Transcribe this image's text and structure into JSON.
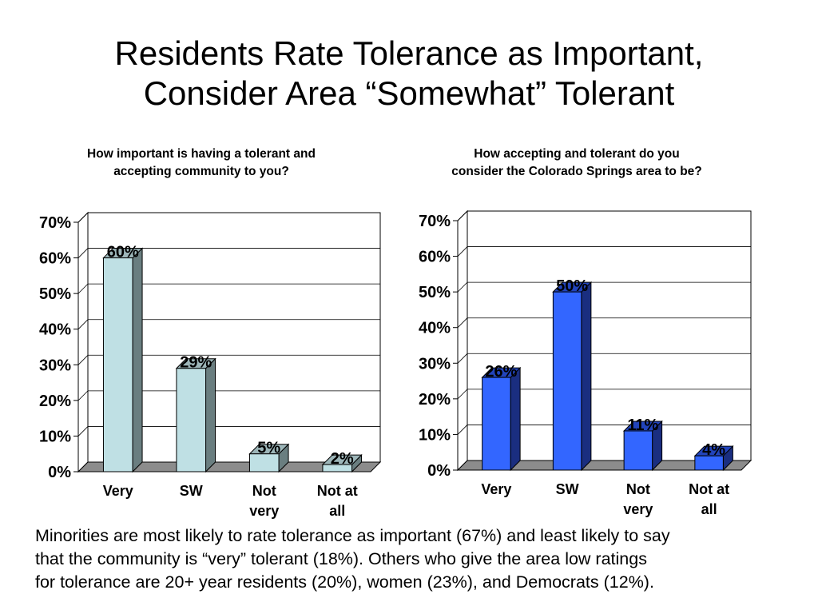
{
  "title": {
    "line1": "Residents Rate Tolerance as Important,",
    "line2": "Consider Area “Somewhat” Tolerant"
  },
  "footnote": {
    "line1": "Minorities are most likely to rate tolerance as important (67%) and least likely to say",
    "line2": "that the community is “very” tolerant (18%).  Others who give the area low ratings",
    "line3": "for tolerance are 20+ year residents (20%), women (23%), and Democrats (12%)."
  },
  "chart_data": [
    {
      "type": "bar",
      "title_lines": [
        "How important is having a tolerant and",
        "accepting community to you?"
      ],
      "categories": [
        [
          "Very"
        ],
        [
          "SW"
        ],
        [
          "Not",
          "very"
        ],
        [
          "Not at",
          "all"
        ]
      ],
      "values": [
        60,
        29,
        5,
        2
      ],
      "data_labels": [
        "60%",
        "29%",
        "5%",
        "2%"
      ],
      "ylim": [
        0,
        70
      ],
      "yticks": [
        0,
        10,
        20,
        30,
        40,
        50,
        60,
        70
      ],
      "ytick_labels": [
        "0%",
        "10%",
        "20%",
        "30%",
        "40%",
        "50%",
        "60%",
        "70%"
      ],
      "grid": true,
      "colors": {
        "front": "#BFE0E4",
        "side": "#6A7E80",
        "top": "#9DB6B9"
      }
    },
    {
      "type": "bar",
      "title_lines": [
        "How accepting and tolerant do you",
        "consider the Colorado Springs area to be?"
      ],
      "categories": [
        [
          "Very"
        ],
        [
          "SW"
        ],
        [
          "Not",
          "very"
        ],
        [
          "Not at",
          "all"
        ]
      ],
      "values": [
        26,
        50,
        11,
        4
      ],
      "data_labels": [
        "26%",
        "50%",
        "11%",
        "4%"
      ],
      "ylim": [
        0,
        70
      ],
      "yticks": [
        0,
        10,
        20,
        30,
        40,
        50,
        60,
        70
      ],
      "ytick_labels": [
        "0%",
        "10%",
        "20%",
        "30%",
        "40%",
        "50%",
        "60%",
        "70%"
      ],
      "grid": true,
      "colors": {
        "front": "#3366FF",
        "side": "#1A2E80",
        "top": "#2244BB"
      }
    }
  ]
}
